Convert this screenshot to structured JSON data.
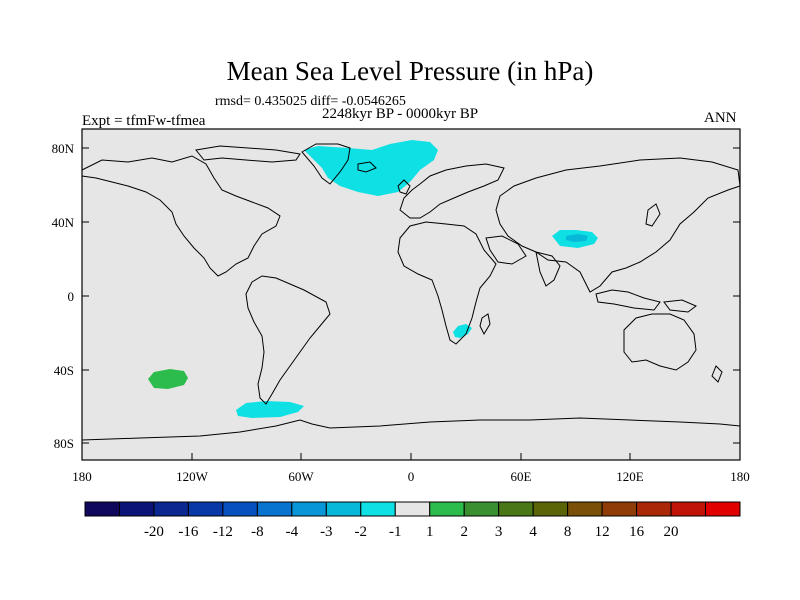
{
  "title": "Mean Sea Level Pressure (in hPa)",
  "stats_line": "rmsd= 0.435025 diff= -0.0546265",
  "period": "2248kyr BP - 0000kyr BP",
  "experiment": "Expt = tfmFw-tfmea",
  "season": "ANN",
  "map": {
    "lat_ticks": [
      "80N",
      "40N",
      "0",
      "40S",
      "80S"
    ],
    "lon_ticks": [
      "180",
      "120W",
      "60W",
      "0",
      "60E",
      "120E",
      "180"
    ],
    "background_color": "#e6e6e6",
    "anomaly_regions": [
      {
        "region": "Greenland / North Atlantic",
        "value_class": "-2 to -1",
        "color": "#0ee0e4"
      },
      {
        "region": "Tibetan Plateau",
        "value_class": "-2 to -1",
        "color": "#0ee0e4"
      },
      {
        "region": "Tibetan Plateau core",
        "value_class": "-3 to -2",
        "color": "#08b8d8"
      },
      {
        "region": "Southern Africa",
        "value_class": "-2 to -1",
        "color": "#0ee0e4"
      },
      {
        "region": "Southern Ocean off Antarctic Peninsula",
        "value_class": "-2 to -1",
        "color": "#0ee0e4"
      },
      {
        "region": "South Pacific",
        "value_class": "1 to 2",
        "color": "#2cbc4c"
      }
    ]
  },
  "colorbar": {
    "labels": [
      "-20",
      "-16",
      "-12",
      "-8",
      "-4",
      "-3",
      "-2",
      "-1",
      "1",
      "2",
      "3",
      "4",
      "8",
      "12",
      "16",
      "20"
    ],
    "colors": [
      "#10085a",
      "#0c1478",
      "#0a2890",
      "#0838a8",
      "#0650c0",
      "#0874d0",
      "#0896d8",
      "#08b8d8",
      "#0ee0e4",
      "#e6e6e6",
      "#2cbc4c",
      "#3a9030",
      "#4a7818",
      "#5c6408",
      "#7a5008",
      "#903c08",
      "#a82808",
      "#c01408",
      "#e00000"
    ]
  }
}
